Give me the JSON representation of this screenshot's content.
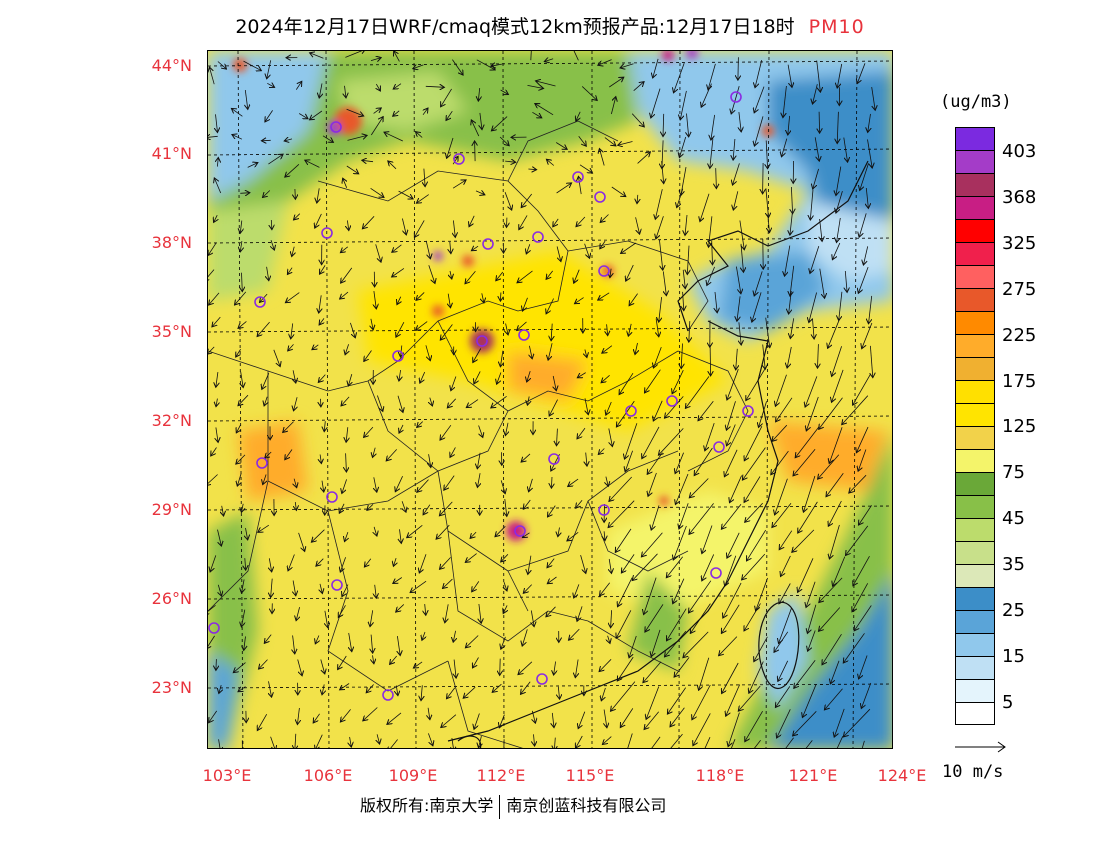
{
  "title": {
    "main": "2024年12月17日WRF/cmaq模式12km预报产品:12月17日18时",
    "species": "PM10"
  },
  "map": {
    "lat_labels": [
      "44°N",
      "41°N",
      "38°N",
      "35°N",
      "32°N",
      "29°N",
      "26°N",
      "23°N"
    ],
    "lon_labels": [
      "103°E",
      "106°E",
      "109°E",
      "112°E",
      "115°E",
      "118°E",
      "121°E",
      "124°E"
    ]
  },
  "legend": {
    "unit": "(ug/m3)",
    "levels": [
      "403",
      "368",
      "325",
      "275",
      "225",
      "175",
      "125",
      "75",
      "45",
      "35",
      "25",
      "15",
      "5"
    ],
    "colors": [
      "#7b2ae0",
      "#a43cc8",
      "#a8305e",
      "#c81e84",
      "#ff0000",
      "#f0204c",
      "#ff6060",
      "#e8582a",
      "#ff8a00",
      "#ffac2a",
      "#f0b030",
      "#ffe000",
      "#ffe400",
      "#f2d24a",
      "#f4f46a",
      "#6aa838",
      "#88c048",
      "#bcdc6c",
      "#c8e08a",
      "#dce8b8",
      "#3c8ec8",
      "#5aa4d8",
      "#90c8ec",
      "#bfe0f4",
      "#e4f4fc",
      "#ffffff"
    ],
    "wind_reference": "10 m/s"
  },
  "footer": {
    "copyright": "版权所有:南京大学",
    "company": "南京创蓝科技有限公司"
  }
}
